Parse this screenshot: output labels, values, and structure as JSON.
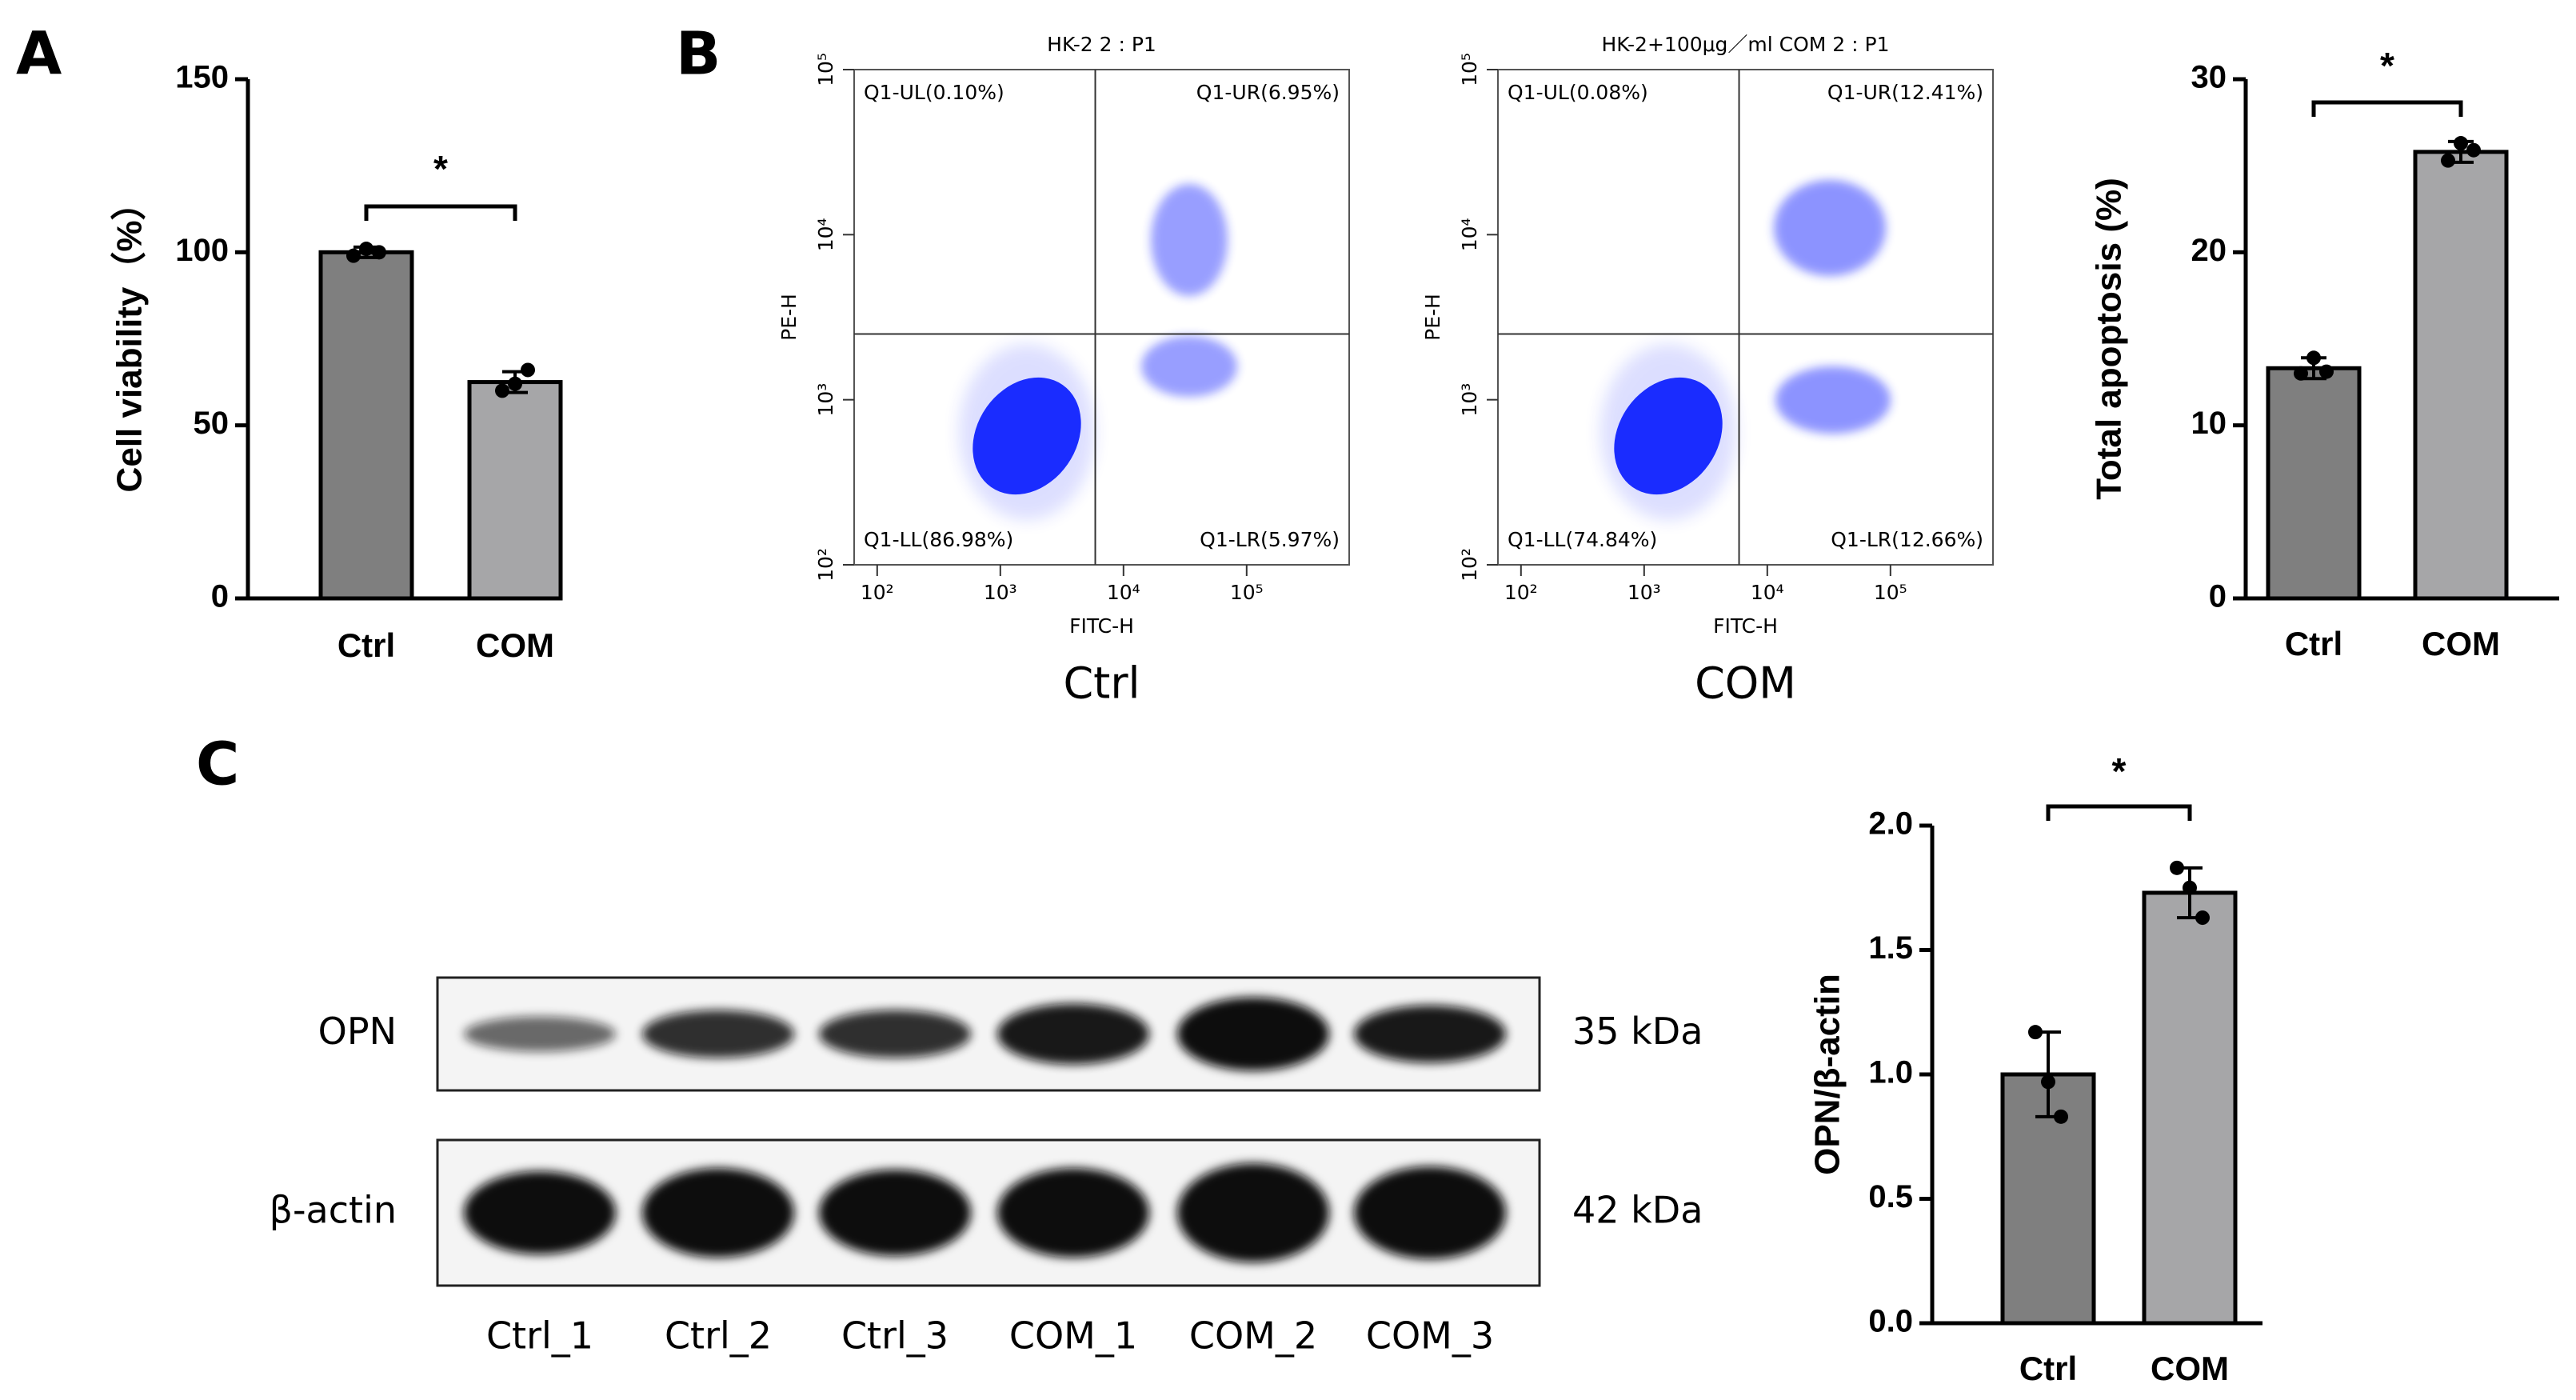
{
  "panel_labels": [
    "A",
    "B",
    "C"
  ],
  "chart_data": [
    {
      "type": "bar",
      "ylabel": "Cell viability（%）",
      "categories": [
        "Ctrl",
        "COM"
      ],
      "values": [
        100,
        62.5
      ],
      "errors": [
        1.5,
        3
      ],
      "points": [
        [
          99,
          101,
          100
        ],
        [
          60,
          62,
          66
        ]
      ],
      "colors": [
        "#7f7f7f",
        "#a6a6a8"
      ],
      "ylim": [
        0,
        150
      ],
      "yticks": [
        0,
        50,
        100,
        150
      ],
      "significance": "*"
    },
    {
      "type": "scatter",
      "title": "HK-2 2 : P1",
      "xlabel": "FITC-H",
      "ylabel": "PE-H",
      "caption": "Ctrl",
      "log": true,
      "xlim": [
        65,
        680000
      ],
      "ylim": [
        100,
        100000
      ],
      "xticks": [
        {
          "value": 100,
          "label": "10²"
        },
        {
          "value": 1000,
          "label": "10³"
        },
        {
          "value": 10000,
          "label": "10⁴"
        },
        {
          "value": 100000,
          "label": "10⁵"
        }
      ],
      "yticks": [
        {
          "value": 100,
          "label": "10²"
        },
        {
          "value": 1000,
          "label": "10³"
        },
        {
          "value": 10000,
          "label": "10⁴"
        },
        {
          "value": 100000,
          "label": "10⁵"
        }
      ],
      "gates": {
        "x": 5900,
        "y": 2500
      },
      "color": "#1a2cff",
      "quadrants": {
        "UL": "Q1-UL(0.10%)",
        "UR": "Q1-UR(6.95%)",
        "LL": "Q1-LL(86.98%)",
        "LR": "Q1-LR(5.97%)"
      }
    },
    {
      "type": "scatter",
      "title": "HK-2+100μg／ml COM 2 : P1",
      "xlabel": "FITC-H",
      "ylabel": "PE-H",
      "caption": "COM",
      "log": true,
      "xlim": [
        65,
        680000
      ],
      "ylim": [
        100,
        100000
      ],
      "xticks": [
        {
          "value": 100,
          "label": "10²"
        },
        {
          "value": 1000,
          "label": "10³"
        },
        {
          "value": 10000,
          "label": "10⁴"
        },
        {
          "value": 100000,
          "label": "10⁵"
        }
      ],
      "yticks": [
        {
          "value": 100,
          "label": "10²"
        },
        {
          "value": 1000,
          "label": "10³"
        },
        {
          "value": 10000,
          "label": "10⁴"
        },
        {
          "value": 100000,
          "label": "10⁵"
        }
      ],
      "gates": {
        "x": 5900,
        "y": 2500
      },
      "color": "#1a2cff",
      "quadrants": {
        "UL": "Q1-UL(0.08%)",
        "UR": "Q1-UR(12.41%)",
        "LL": "Q1-LL(74.84%)",
        "LR": "Q1-LR(12.66%)"
      }
    },
    {
      "type": "bar",
      "ylabel": "Total apoptosis (%)",
      "categories": [
        "Ctrl",
        "COM"
      ],
      "values": [
        13.3,
        25.8
      ],
      "errors": [
        0.6,
        0.6
      ],
      "points": [
        [
          13.0,
          13.9,
          13.1
        ],
        [
          25.3,
          26.3,
          25.9
        ]
      ],
      "colors": [
        "#7f7f7f",
        "#a6a6a8"
      ],
      "ylim": [
        0,
        30
      ],
      "yticks": [
        0,
        10,
        20,
        30
      ],
      "significance": "*"
    },
    {
      "type": "bar",
      "ylabel": "OPN/β-actin",
      "categories": [
        "Ctrl",
        "COM"
      ],
      "values": [
        1.0,
        1.73
      ],
      "errors": [
        0.17,
        0.1
      ],
      "points": [
        [
          1.17,
          0.97,
          0.83
        ],
        [
          1.83,
          1.75,
          1.63
        ]
      ],
      "colors": [
        "#7f7f7f",
        "#a6a6a8"
      ],
      "ylim": [
        0,
        2
      ],
      "yticks": [
        {
          "value": 0,
          "label": "0.0"
        },
        0.5,
        {
          "value": 1,
          "label": "1.0"
        },
        1.5,
        {
          "value": 2,
          "label": "2.0"
        }
      ],
      "significance": "*"
    }
  ],
  "blot": {
    "rows": [
      {
        "label": "OPN",
        "size": "35 kDa"
      },
      {
        "label": "β-actin",
        "size": "42 kDa"
      }
    ],
    "lanes": [
      "Ctrl_1",
      "Ctrl_2",
      "Ctrl_3",
      "COM_1",
      "COM_2",
      "COM_3"
    ]
  }
}
